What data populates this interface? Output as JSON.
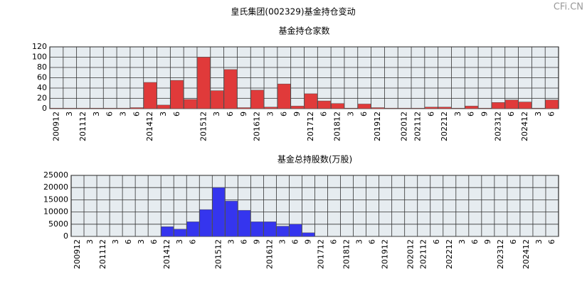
{
  "header": {
    "title": "皇氏集团(002329)基金持仓变动",
    "watermark": "CFi.CN"
  },
  "chart_data": [
    {
      "type": "bar",
      "title": "基金持仓家数",
      "categories": [
        "200912",
        "3",
        "201112",
        "3",
        "6",
        "3",
        "6",
        "201412",
        "3",
        "6",
        null,
        "201512",
        "3",
        "6",
        "9",
        "201612",
        "3",
        "6",
        "9",
        "201712",
        "6",
        "201812",
        "3",
        "6",
        "201912",
        null,
        "202012",
        "202112",
        "6",
        "202212",
        "3",
        "6",
        "9",
        "202312",
        "6",
        "202412",
        "3",
        "6"
      ],
      "values": [
        1,
        1,
        1,
        1,
        1,
        1,
        2,
        51,
        7,
        55,
        18,
        100,
        35,
        76,
        2,
        36,
        3,
        48,
        5,
        29,
        15,
        10,
        1,
        9,
        2,
        1,
        1,
        1,
        3,
        3,
        1,
        5,
        1,
        12,
        17,
        13,
        1,
        17
      ],
      "color": "#e03a3a",
      "ylim": [
        0,
        120
      ],
      "yticks": [
        0,
        20,
        40,
        60,
        80,
        100,
        120
      ],
      "grid": true
    },
    {
      "type": "bar",
      "title": "基金总持股数(万股)",
      "categories": [
        "200912",
        "3",
        "201112",
        "3",
        "6",
        "3",
        "6",
        "201412",
        "3",
        "6",
        null,
        "201512",
        "3",
        "6",
        "9",
        "201612",
        "3",
        "6",
        "9",
        "201712",
        "6",
        "201812",
        "3",
        "6",
        "201912",
        null,
        "202012",
        "202112",
        "6",
        "202212",
        "3",
        "6",
        "9",
        "202312",
        "6",
        "202412",
        "3",
        "6"
      ],
      "values": [
        100,
        100,
        100,
        100,
        100,
        100,
        100,
        4000,
        3000,
        6000,
        11000,
        20000,
        14500,
        10700,
        6000,
        6000,
        4200,
        5000,
        1500,
        100,
        100,
        100,
        100,
        100,
        100,
        100,
        100,
        100,
        100,
        100,
        100,
        100,
        100,
        100,
        100,
        100,
        100,
        100
      ],
      "color": "#3535ee",
      "ylim": [
        0,
        25000
      ],
      "yticks": [
        0,
        5000,
        10000,
        15000,
        20000,
        25000
      ],
      "grid": true
    }
  ]
}
